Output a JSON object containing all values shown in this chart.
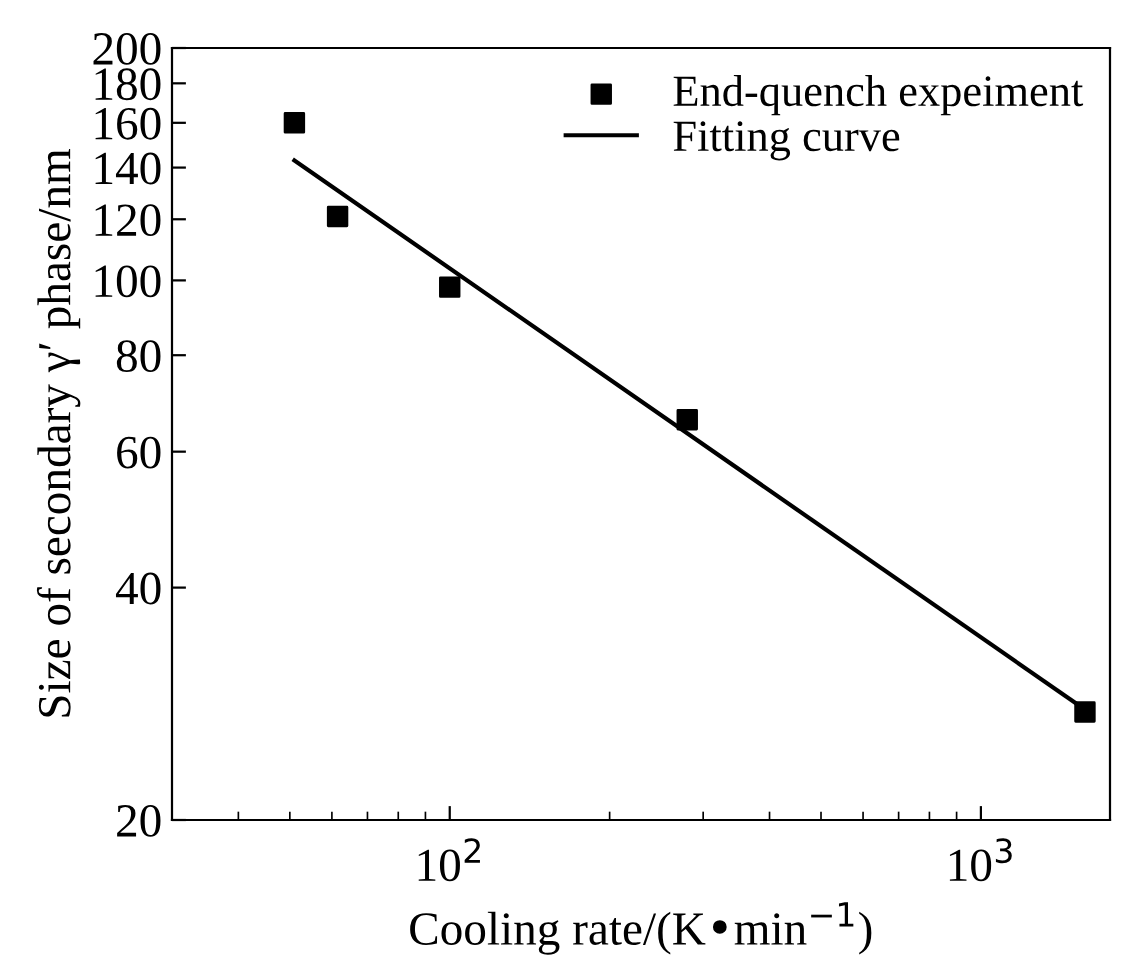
{
  "chart_data": {
    "type": "scatter",
    "xlabel": "Cooling rate/(K•min$^{−1}$)",
    "ylabel": "Size of secondary γ′ phase/nm",
    "log": "xy",
    "xlim": [
      30,
      1750
    ],
    "xticks": [
      {
        "value": 100,
        "label": "10$^{2}$"
      },
      {
        "value": 1000,
        "label": "10$^{3}$"
      }
    ],
    "ylim": [
      20,
      200
    ],
    "yticks": [
      20,
      40,
      60,
      80,
      100,
      120,
      140,
      160,
      180,
      200
    ],
    "legend": "top right",
    "grid": false,
    "series": [
      {
        "name": "End-quench expeiment",
        "marker": "square",
        "color": "#000000",
        "x": [
          51,
          61.5,
          100,
          280,
          1570
        ],
        "values": [
          160,
          121,
          98,
          66,
          27.6
        ]
      },
      {
        "name": "Fitting curve",
        "type": "line",
        "marker": "none",
        "line_style": "solid",
        "color": "#000000",
        "x": [
          51,
          1570
        ],
        "values": [
          143,
          27.8
        ]
      }
    ]
  }
}
